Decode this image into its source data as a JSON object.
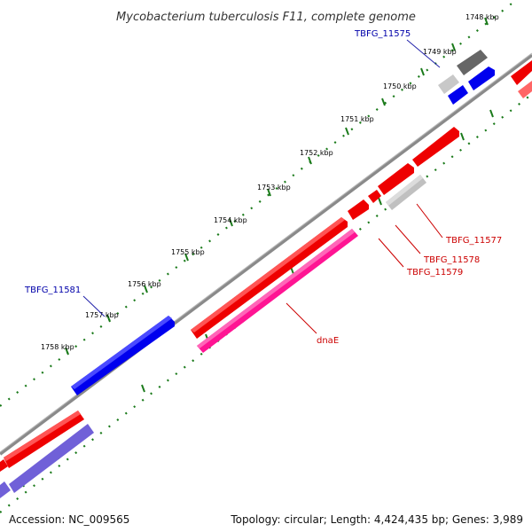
{
  "title": "Mycobacterium tuberculosis F11, complete genome",
  "footer": {
    "accession": "Accession: NC_009565",
    "summary": "Topology: circular; Length: 4,424,435 bp; Genes: 3,989"
  },
  "colors": {
    "backbone": "#808080",
    "ticks": "#1a7a1a",
    "forward_cds": "#ff0000",
    "reverse_cds": "#0000ff",
    "rna": "#ff1493",
    "pseudo": "#c0c0c0",
    "other": "#606060",
    "label_forward": "#cc0000",
    "label_reverse": "#0000aa"
  },
  "ticks": [
    {
      "label": "1748 kbp"
    },
    {
      "label": "1749 kbp"
    },
    {
      "label": "1750 kbp"
    },
    {
      "label": "1751 kbp"
    },
    {
      "label": "1752 kbp"
    },
    {
      "label": "1753 kbp"
    },
    {
      "label": "1754 kbp"
    },
    {
      "label": "1755 kbp"
    },
    {
      "label": "1756 kbp"
    },
    {
      "label": "1757 kbp"
    },
    {
      "label": "1758 kbp"
    }
  ],
  "gene_labels": [
    {
      "id": "tbfg_11575",
      "text": "TBFG_11575",
      "strand": "reverse"
    },
    {
      "id": "tbfg_11577",
      "text": "TBFG_11577",
      "strand": "forward"
    },
    {
      "id": "tbfg_11578",
      "text": "TBFG_11578",
      "strand": "forward"
    },
    {
      "id": "tbfg_11579",
      "text": "TBFG_11579",
      "strand": "forward"
    },
    {
      "id": "tbfg_11581",
      "text": "TBFG_11581",
      "strand": "reverse"
    },
    {
      "id": "dnae",
      "text": "dnaE",
      "strand": "forward"
    }
  ]
}
